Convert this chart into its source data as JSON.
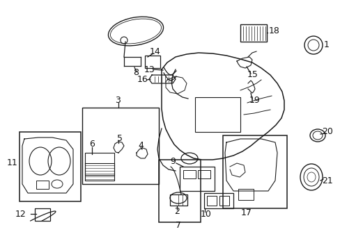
{
  "background_color": "#ffffff",
  "fig_width": 4.89,
  "fig_height": 3.6,
  "dpi": 100,
  "line_color": "#1a1a1a",
  "text_color": "#111111",
  "font_size": 9
}
